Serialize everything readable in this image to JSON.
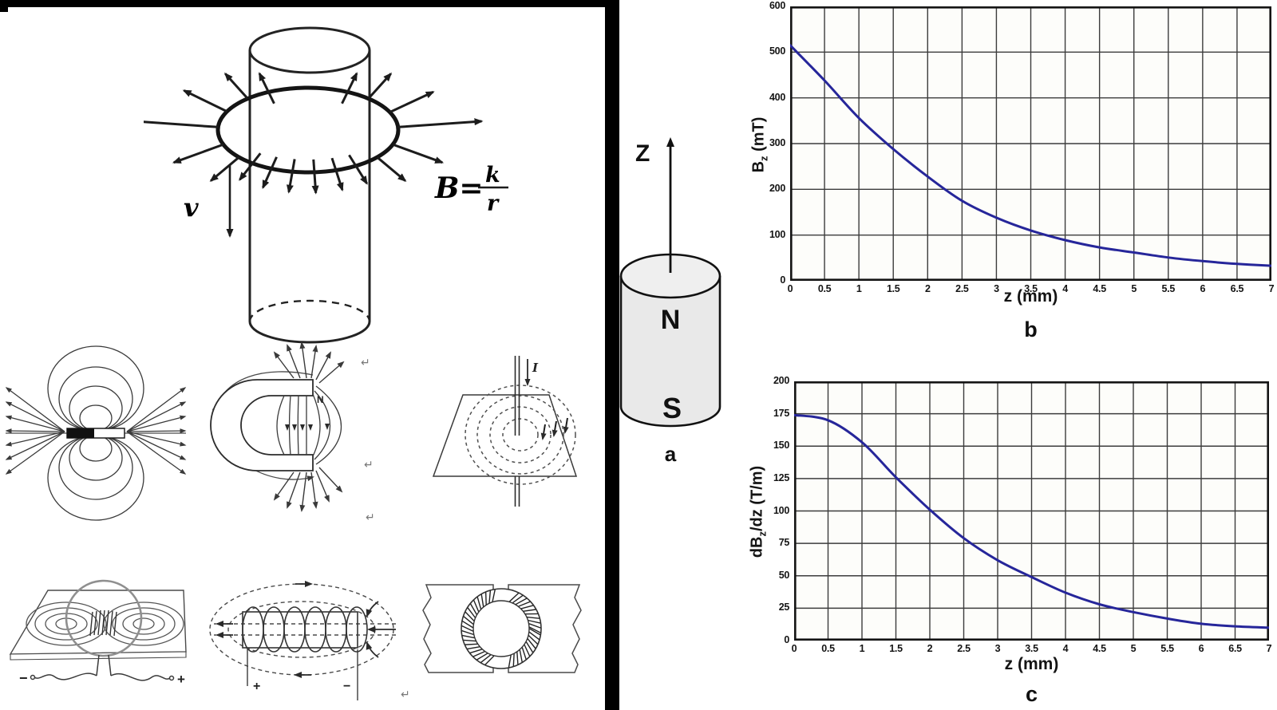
{
  "left_panel": {
    "falling_magnet": {
      "velocity_label": "v",
      "formula_lhs": "B=",
      "formula_numerator": "k",
      "formula_denominator": "r"
    },
    "horseshoe": {
      "north_label": "N"
    },
    "wire_plane": {
      "current_label": "I"
    },
    "loop_plane": {
      "minus_label": "−",
      "plus_label": "+"
    },
    "solenoid": {
      "plus_label": "+",
      "minus_label": "−"
    },
    "return_mark": "↵"
  },
  "magnet_panel": {
    "axis_label": "Z",
    "north_label": "N",
    "south_label": "S",
    "caption": "a"
  },
  "chart_data": [
    {
      "id": "b",
      "type": "line",
      "caption": "b",
      "xlabel": "z (mm)",
      "ylabel_pre": "B",
      "ylabel_sub": "z",
      "ylabel_post": "  (mT)",
      "x": [
        0,
        0.5,
        1,
        1.5,
        2,
        2.5,
        3,
        3.5,
        4,
        4.5,
        5,
        5.5,
        6,
        6.5,
        7
      ],
      "values": [
        515,
        438,
        356,
        288,
        228,
        175,
        138,
        110,
        89,
        73,
        62,
        51,
        43,
        37,
        33
      ],
      "xlim": [
        0,
        7
      ],
      "ylim": [
        0,
        600
      ],
      "xticks": [
        0,
        0.5,
        1,
        1.5,
        2,
        2.5,
        3,
        3.5,
        4,
        4.5,
        5,
        5.5,
        6,
        6.5,
        7
      ],
      "xtick_labels": [
        "0",
        "0.5",
        "1",
        "1.5",
        "2",
        "2.5",
        "3",
        "3.5",
        "4",
        "4.5",
        "5",
        "5.5",
        "6",
        "6.5",
        "7"
      ],
      "yticks": [
        0,
        100,
        200,
        300,
        400,
        500,
        600
      ],
      "grid": true,
      "legend": "none",
      "line_color": "#26269a"
    },
    {
      "id": "c",
      "type": "line",
      "caption": "c",
      "xlabel": "z (mm)",
      "ylabel_pre": "dB",
      "ylabel_sub": "z",
      "ylabel_post": "/dz  (T/m)",
      "x": [
        0,
        0.5,
        1,
        1.5,
        2,
        2.5,
        3,
        3.5,
        4,
        4.5,
        5,
        5.5,
        6,
        6.5,
        7
      ],
      "values": [
        174,
        170,
        153,
        126,
        101,
        79,
        62,
        49,
        37,
        28,
        22,
        17,
        13,
        11,
        10
      ],
      "xlim": [
        0,
        7
      ],
      "ylim": [
        0,
        200
      ],
      "xticks": [
        0,
        0.5,
        1,
        1.5,
        2,
        2.5,
        3,
        3.5,
        4,
        4.5,
        5,
        5.5,
        6,
        6.5,
        7
      ],
      "xtick_labels": [
        "0",
        "0.5",
        "1",
        "1.5",
        "2",
        "2.5",
        "3",
        "3.5",
        "4",
        "4.5",
        "5",
        "5.5",
        "6",
        "6.5",
        "7"
      ],
      "yticks": [
        0,
        25,
        50,
        75,
        100,
        125,
        150,
        175,
        200
      ],
      "grid": true,
      "legend": "none",
      "line_color": "#26269a"
    }
  ]
}
